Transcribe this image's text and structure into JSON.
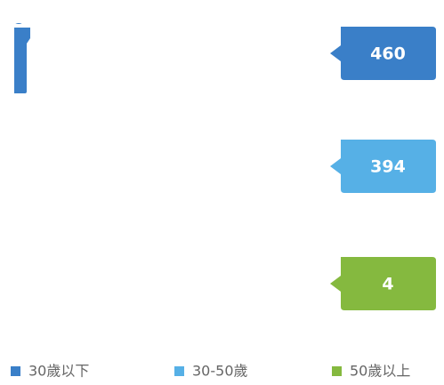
{
  "chart_data": {
    "type": "pictograph",
    "categories": [
      "30歲以下",
      "30-50歲",
      "50歲以上"
    ],
    "values": [
      460,
      394,
      4
    ],
    "colors": [
      "#3a7fc8",
      "#56b0e6",
      "#85b93f"
    ]
  }
}
